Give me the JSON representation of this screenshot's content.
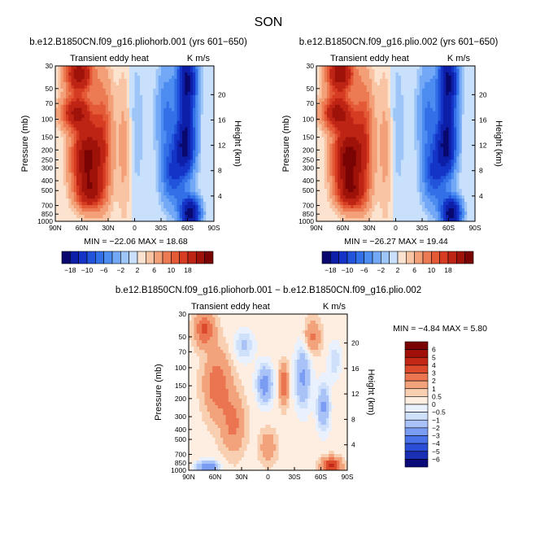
{
  "figure": {
    "season": "SON",
    "colors": {
      "neg": [
        "#08086e",
        "#0d1ea8",
        "#1434c8",
        "#2154db",
        "#3270e8",
        "#4d8cf0",
        "#72a8f5",
        "#9ec5f8",
        "#c8e0fb"
      ],
      "pos": [
        "#fbe3cf",
        "#f8c4a3",
        "#f3a078",
        "#ec7b53",
        "#e45a37",
        "#d63c22",
        "#be2414",
        "#9e120a",
        "#7a0404"
      ],
      "axis": "#000000"
    }
  },
  "chart_data": [
    {
      "type": "heatmap",
      "title": "b.e12.B1850CN.f09_g16.pliohorb.001 (yrs 601−650)",
      "left_string": "Transient eddy heat",
      "right_string": "K m/s",
      "ylabel": "Pressure (mb)",
      "right_ylabel": "Height (km)",
      "x_ticks": [
        "90N",
        "60N",
        "30N",
        "0",
        "30S",
        "60S",
        "90S"
      ],
      "y_ticks": [
        "30",
        "50",
        "70",
        "100",
        "150",
        "200",
        "250",
        "300",
        "400",
        "500",
        "700",
        "850",
        "1000"
      ],
      "height_ticks": [
        "20",
        "16",
        "12",
        "8",
        "4"
      ],
      "ylim": [
        1000,
        30
      ],
      "y_scale": "log",
      "min_max": "MIN = −22.06   MAX =  18.68",
      "min": -22.06,
      "max": 18.68,
      "colorbar": {
        "orientation": "horizontal",
        "labels": [
          "−18",
          "−10",
          "−6",
          "−2",
          "2",
          "6",
          "10",
          "18"
        ]
      }
    },
    {
      "type": "heatmap",
      "title": "b.e12.B1850CN.f09_g16.plio.002 (yrs 601−650)",
      "left_string": "Transient eddy heat",
      "right_string": "K m/s",
      "ylabel": "Pressure (mb)",
      "right_ylabel": "Height (km)",
      "x_ticks": [
        "90N",
        "60N",
        "30N",
        "0",
        "30S",
        "60S",
        "90S"
      ],
      "y_ticks": [
        "30",
        "50",
        "70",
        "100",
        "150",
        "200",
        "250",
        "300",
        "400",
        "500",
        "700",
        "850",
        "1000"
      ],
      "height_ticks": [
        "20",
        "16",
        "12",
        "8",
        "4"
      ],
      "ylim": [
        1000,
        30
      ],
      "y_scale": "log",
      "min_max": "MIN = −26.27   MAX =  19.44",
      "min": -26.27,
      "max": 19.44,
      "colorbar": {
        "orientation": "horizontal",
        "labels": [
          "−18",
          "−10",
          "−6",
          "−2",
          "2",
          "6",
          "10",
          "18"
        ]
      }
    },
    {
      "type": "heatmap",
      "title": "b.e12.B1850CN.f09_g16.pliohorb.001 − b.e12.B1850CN.f09_g16.plio.002",
      "left_string": "Transient eddy heat",
      "right_string": "K m/s",
      "ylabel": "Pressure (mb)",
      "right_ylabel": "Height (km)",
      "x_ticks": [
        "90N",
        "60N",
        "30N",
        "0",
        "30S",
        "60S",
        "90S"
      ],
      "y_ticks": [
        "30",
        "50",
        "70",
        "100",
        "150",
        "200",
        "300",
        "400",
        "500",
        "700",
        "850",
        "1000"
      ],
      "height_ticks": [
        "20",
        "16",
        "12",
        "8",
        "4"
      ],
      "ylim": [
        1000,
        30
      ],
      "y_scale": "log",
      "min_max": "MIN =   −4.84   MAX =    5.80",
      "min": -4.84,
      "max": 5.8,
      "colorbar": {
        "orientation": "vertical",
        "labels": [
          "6",
          "5",
          "4",
          "3",
          "2",
          "1",
          "0.5",
          "0",
          "−0.5",
          "−1",
          "−2",
          "−3",
          "−4",
          "−5",
          "−6"
        ]
      }
    }
  ]
}
